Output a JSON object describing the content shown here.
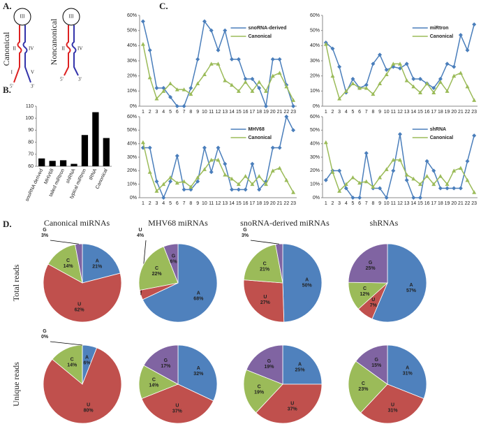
{
  "panels": {
    "a": "A.",
    "b": "B.",
    "c": "C.",
    "d": "D."
  },
  "diagram": {
    "canonical": {
      "title": "Canonical",
      "loop": "III",
      "left_stem": "II",
      "right_stem": "IV",
      "left_base": "I",
      "right_base": "V",
      "five": "5'",
      "three": "3'"
    },
    "noncanonical": {
      "title": "Noncanonical",
      "loop": "III",
      "left_stem": "II",
      "right_stem": "IV",
      "five": "5'",
      "three": "3'"
    }
  },
  "pie_columns": [
    "Canonical miRNAs",
    "MHV68 miRNAs",
    "snoRNA-derived miRNAs",
    "shRNAs"
  ],
  "pie_rows": [
    "Total reads",
    "Unique reads"
  ],
  "chart_data": [
    {
      "type": "bar",
      "categories": [
        "snoRNA derived",
        "MHV68",
        "tailed miRtron",
        "shRNA",
        "typical miRtron",
        "tRNA",
        "Canonical"
      ],
      "values": [
        66.5,
        64.5,
        65,
        62,
        86,
        105,
        83.5
      ],
      "color": "#000000",
      "ylim": [
        60,
        110
      ],
      "yticks": [
        60,
        70,
        80,
        90,
        100,
        110
      ]
    },
    {
      "type": "line",
      "categories": [
        "1",
        "2",
        "3",
        "4",
        "5",
        "6",
        "7",
        "8",
        "9",
        "10",
        "11",
        "12",
        "13",
        "14",
        "15",
        "16",
        "17",
        "18",
        "19",
        "20",
        "21",
        "22",
        "23"
      ],
      "ylim": [
        0,
        60
      ],
      "yticks": [
        {
          "value": 0,
          "label": "0%"
        },
        {
          "value": 10,
          "label": "10%"
        },
        {
          "value": 20,
          "label": "20%"
        },
        {
          "value": 30,
          "label": "30%"
        },
        {
          "value": 40,
          "label": "40%"
        },
        {
          "value": 50,
          "label": "50%"
        },
        {
          "value": 60,
          "label": "60%"
        }
      ],
      "series": [
        {
          "name": "snoRNA-derived",
          "color": "#4a7ebb",
          "values": [
            56,
            37,
            12,
            12,
            6,
            0,
            0,
            12,
            31,
            56,
            50,
            37,
            50,
            31,
            31,
            18,
            18,
            12,
            0,
            31,
            31,
            14,
            0
          ]
        },
        {
          "name": "Canonical",
          "color": "#9bbb59",
          "values": [
            41,
            19,
            5,
            10,
            15,
            11,
            11,
            8,
            15,
            21,
            28,
            28,
            17,
            14,
            10,
            16,
            10,
            16,
            10,
            20,
            22,
            13,
            4
          ]
        }
      ]
    },
    {
      "type": "line",
      "categories": [
        "1",
        "2",
        "3",
        "4",
        "5",
        "6",
        "7",
        "8",
        "9",
        "10",
        "11",
        "12",
        "13",
        "14",
        "15",
        "16",
        "17",
        "18",
        "19",
        "20",
        "21",
        "22",
        "23"
      ],
      "ylim": [
        0,
        60
      ],
      "yticks": [
        {
          "value": 0,
          "label": "0%"
        },
        {
          "value": 10,
          "label": "10%"
        },
        {
          "value": 20,
          "label": "20%"
        },
        {
          "value": 30,
          "label": "30%"
        },
        {
          "value": 40,
          "label": "40%"
        },
        {
          "value": 50,
          "label": "50%"
        },
        {
          "value": 60,
          "label": "60%"
        }
      ],
      "series": [
        {
          "name": "miRtron",
          "color": "#4a7ebb",
          "values": [
            42,
            38,
            26,
            9,
            18,
            12,
            14,
            28,
            34,
            24,
            26,
            25,
            28,
            18,
            18,
            15,
            12,
            18,
            28,
            26,
            47,
            37,
            54
          ]
        },
        {
          "name": "Canonical",
          "color": "#9bbb59",
          "values": [
            41,
            20,
            5,
            10,
            15,
            12,
            12,
            8,
            15,
            21,
            28,
            28,
            17,
            13,
            9,
            15,
            9,
            16,
            10,
            20,
            22,
            13,
            4
          ]
        }
      ]
    },
    {
      "type": "line",
      "categories": [
        "1",
        "2",
        "3",
        "4",
        "5",
        "6",
        "7",
        "8",
        "9",
        "10",
        "11",
        "12",
        "13",
        "14",
        "15",
        "16",
        "17",
        "18",
        "19",
        "20",
        "21",
        "22",
        "23"
      ],
      "ylim": [
        0,
        60
      ],
      "yticks": [
        {
          "value": 0,
          "label": "0%"
        },
        {
          "value": 10,
          "label": "10%"
        },
        {
          "value": 20,
          "label": "20%"
        },
        {
          "value": 30,
          "label": "30%"
        },
        {
          "value": 40,
          "label": "40%"
        },
        {
          "value": 50,
          "label": "50%"
        },
        {
          "value": 60,
          "label": "60%"
        }
      ],
      "series": [
        {
          "name": "MHV68",
          "color": "#4a7ebb",
          "values": [
            37,
            37,
            12,
            0,
            12,
            31,
            6,
            6,
            12,
            37,
            19,
            37,
            25,
            6,
            6,
            6,
            25,
            6,
            12,
            37,
            37,
            60,
            50
          ]
        },
        {
          "name": "Canonical",
          "color": "#9bbb59",
          "values": [
            41,
            19,
            5,
            10,
            15,
            11,
            12,
            8,
            15,
            21,
            28,
            28,
            17,
            14,
            10,
            16,
            10,
            16,
            10,
            20,
            22,
            13,
            4
          ]
        }
      ]
    },
    {
      "type": "line",
      "categories": [
        "1",
        "2",
        "3",
        "4",
        "5",
        "6",
        "7",
        "8",
        "9",
        "10",
        "11",
        "12",
        "13",
        "14",
        "15",
        "16",
        "17",
        "18",
        "19",
        "20",
        "21",
        "22",
        "23"
      ],
      "ylim": [
        0,
        60
      ],
      "yticks": [
        {
          "value": 0,
          "label": "0%"
        },
        {
          "value": 10,
          "label": "10%"
        },
        {
          "value": 20,
          "label": "20%"
        },
        {
          "value": 30,
          "label": "30%"
        },
        {
          "value": 40,
          "label": "40%"
        },
        {
          "value": 50,
          "label": "50%"
        },
        {
          "value": 60,
          "label": "60%"
        }
      ],
      "series": [
        {
          "name": "shRNA",
          "color": "#4a7ebb",
          "values": [
            13,
            20,
            20,
            7,
            0,
            0,
            33,
            7,
            7,
            0,
            20,
            47,
            13,
            0,
            0,
            27,
            20,
            7,
            7,
            7,
            7,
            27,
            46
          ]
        },
        {
          "name": "Canonical",
          "color": "#9bbb59",
          "values": [
            41,
            19,
            5,
            10,
            15,
            11,
            12,
            8,
            15,
            21,
            28,
            28,
            17,
            14,
            10,
            16,
            10,
            16,
            10,
            20,
            22,
            13,
            4
          ]
        }
      ]
    },
    {
      "type": "pie",
      "categories": [
        "A",
        "U",
        "C",
        "G"
      ],
      "values": [
        21,
        62,
        14,
        3
      ],
      "value_labels": [
        "21%",
        "62%",
        "14%",
        "3%"
      ],
      "colors": [
        "#4f81bd",
        "#c0504d",
        "#9bbb59",
        "#8064a2"
      ]
    },
    {
      "type": "pie",
      "categories": [
        "A",
        "U",
        "C",
        "G"
      ],
      "values": [
        68,
        4,
        22,
        6
      ],
      "value_labels": [
        "68%",
        "4%",
        "22%",
        "6%"
      ],
      "colors": [
        "#4f81bd",
        "#c0504d",
        "#9bbb59",
        "#8064a2"
      ]
    },
    {
      "type": "pie",
      "categories": [
        "A",
        "U",
        "C",
        "G"
      ],
      "values": [
        50,
        27,
        21,
        3
      ],
      "value_labels": [
        "50%",
        "27%",
        "21%",
        "3%"
      ],
      "colors": [
        "#4f81bd",
        "#c0504d",
        "#9bbb59",
        "#8064a2"
      ]
    },
    {
      "type": "pie",
      "categories": [
        "A",
        "U",
        "C",
        "G"
      ],
      "values": [
        57,
        7,
        12,
        25
      ],
      "value_labels": [
        "57%",
        "7%",
        "12%",
        "25%"
      ],
      "colors": [
        "#4f81bd",
        "#c0504d",
        "#9bbb59",
        "#8064a2"
      ]
    },
    {
      "type": "pie",
      "categories": [
        "A",
        "U",
        "C",
        "G"
      ],
      "values": [
        6,
        80,
        14,
        0
      ],
      "value_labels": [
        "6%",
        "80%",
        "14%",
        "0%"
      ],
      "colors": [
        "#4f81bd",
        "#c0504d",
        "#9bbb59",
        "#8064a2"
      ]
    },
    {
      "type": "pie",
      "categories": [
        "A",
        "U",
        "C",
        "G"
      ],
      "values": [
        32,
        37,
        14,
        17
      ],
      "value_labels": [
        "32%",
        "37%",
        "14%",
        "17%"
      ],
      "colors": [
        "#4f81bd",
        "#c0504d",
        "#9bbb59",
        "#8064a2"
      ]
    },
    {
      "type": "pie",
      "categories": [
        "A",
        "U",
        "C",
        "G"
      ],
      "values": [
        25,
        37,
        19,
        19
      ],
      "value_labels": [
        "25%",
        "37%",
        "19%",
        "19%"
      ],
      "colors": [
        "#4f81bd",
        "#c0504d",
        "#9bbb59",
        "#8064a2"
      ]
    },
    {
      "type": "pie",
      "categories": [
        "A",
        "U",
        "C",
        "G"
      ],
      "values": [
        31,
        31,
        23,
        15
      ],
      "value_labels": [
        "31%",
        "31%",
        "23%",
        "15%"
      ],
      "colors": [
        "#4f81bd",
        "#c0504d",
        "#9bbb59",
        "#8064a2"
      ]
    }
  ]
}
